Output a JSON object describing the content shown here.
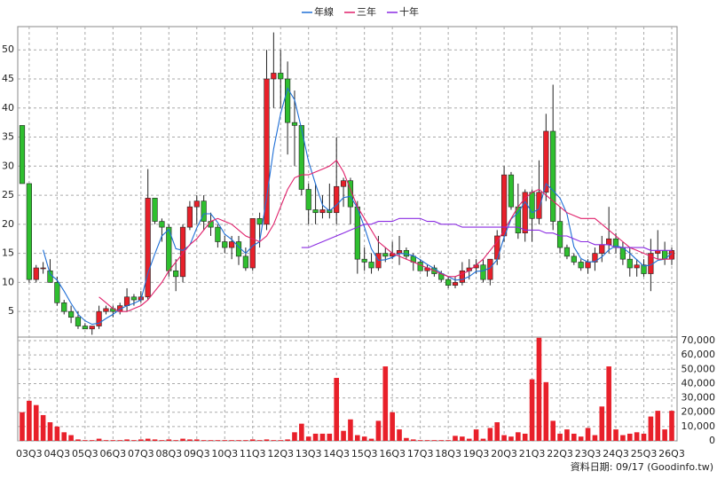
{
  "chart_data": [
    {
      "type": "candlestick",
      "up_color": "#e8202a",
      "down_color": "#2fbf2f",
      "ylim": [
        0.6,
        54
      ],
      "yticks": [
        5,
        10,
        15,
        20,
        25,
        30,
        35,
        40,
        45,
        50
      ],
      "grid": true,
      "legend": "top",
      "ohlc": [
        [
          37,
          37,
          27,
          27
        ],
        [
          27,
          27,
          10,
          10.5
        ],
        [
          10.5,
          13,
          10,
          12.5
        ],
        [
          12.5,
          13.5,
          11.5,
          12.5
        ],
        [
          12,
          14,
          10,
          10
        ],
        [
          10,
          11,
          6,
          6.5
        ],
        [
          6.5,
          7,
          4.5,
          5
        ],
        [
          5,
          6,
          3,
          4
        ],
        [
          4,
          5,
          2,
          2.5
        ],
        [
          2.5,
          3,
          2,
          2
        ],
        [
          2,
          2.5,
          1,
          2.5
        ],
        [
          2.5,
          6,
          2,
          5
        ],
        [
          5,
          6,
          4.5,
          5.5
        ],
        [
          5.5,
          6,
          4,
          5
        ],
        [
          5,
          6.5,
          4.5,
          6
        ],
        [
          6,
          9,
          5,
          7.5
        ],
        [
          7.5,
          8,
          6,
          7
        ],
        [
          7,
          8.5,
          6.5,
          7.5
        ],
        [
          7.5,
          29.5,
          7,
          24.5
        ],
        [
          24.5,
          24.5,
          20,
          20.5
        ],
        [
          20.5,
          21,
          17,
          19.5
        ],
        [
          19.5,
          20,
          11,
          12
        ],
        [
          12,
          14,
          8.5,
          11
        ],
        [
          11,
          20,
          10,
          19.5
        ],
        [
          19.5,
          24,
          19,
          23
        ],
        [
          23,
          25,
          20,
          24
        ],
        [
          24,
          25,
          19,
          20.5
        ],
        [
          20.5,
          22,
          18,
          19.5
        ],
        [
          19.5,
          20,
          16,
          17
        ],
        [
          17,
          18,
          15,
          16
        ],
        [
          16,
          18,
          14,
          17
        ],
        [
          17,
          18,
          13,
          14.5
        ],
        [
          14.5,
          16,
          12,
          12.5
        ],
        [
          12.5,
          21,
          12,
          21
        ],
        [
          21,
          22,
          16,
          20
        ],
        [
          20,
          50,
          19,
          45
        ],
        [
          45,
          53,
          40,
          46
        ],
        [
          46,
          50,
          40,
          45
        ],
        [
          45,
          48,
          32,
          37.5
        ],
        [
          37.5,
          43,
          30,
          37
        ],
        [
          37,
          37,
          25,
          26
        ],
        [
          26,
          27,
          20,
          22.5
        ],
        [
          22.5,
          27,
          20,
          22
        ],
        [
          22,
          25,
          21,
          22.5
        ],
        [
          22.5,
          27,
          21,
          22
        ],
        [
          22,
          35,
          20,
          26.5
        ],
        [
          26.5,
          28,
          23,
          27.5
        ],
        [
          27.5,
          28,
          20,
          23
        ],
        [
          23,
          24,
          11.5,
          14
        ],
        [
          14,
          16,
          12,
          13.5
        ],
        [
          13.5,
          15,
          11.5,
          12.5
        ],
        [
          12.5,
          18,
          12,
          15
        ],
        [
          15,
          16,
          13.5,
          14.5
        ],
        [
          14.5,
          17,
          14,
          15
        ],
        [
          15,
          18,
          13,
          15.5
        ],
        [
          15.5,
          16,
          14,
          14.5
        ],
        [
          14.5,
          15,
          12,
          13.5
        ],
        [
          13.5,
          14,
          12,
          12
        ],
        [
          12,
          13,
          11,
          12.5
        ],
        [
          12.5,
          13,
          11,
          11.5
        ],
        [
          11.5,
          12,
          10,
          10.5
        ],
        [
          10.5,
          11,
          9,
          9.5
        ],
        [
          9.5,
          11,
          9,
          10
        ],
        [
          10,
          13.5,
          9.5,
          12
        ],
        [
          12,
          14,
          10.5,
          12.5
        ],
        [
          12.5,
          14,
          11.5,
          13
        ],
        [
          13,
          14,
          10,
          10.5
        ],
        [
          10.5,
          14,
          9.5,
          14
        ],
        [
          14,
          19,
          13,
          18
        ],
        [
          18,
          30,
          17,
          28.5
        ],
        [
          28.5,
          29,
          22.5,
          23
        ],
        [
          23,
          27,
          17.5,
          18.5
        ],
        [
          18.5,
          26,
          17,
          25.5
        ],
        [
          25.5,
          26,
          17,
          21
        ],
        [
          21,
          31,
          20,
          25.5
        ],
        [
          25.5,
          39,
          24,
          36
        ],
        [
          36,
          44,
          19,
          20.5
        ],
        [
          20.5,
          23,
          15,
          16
        ],
        [
          16,
          16.5,
          14,
          14.5
        ],
        [
          14.5,
          15,
          13,
          13.5
        ],
        [
          13.5,
          14,
          12,
          12.5
        ],
        [
          12.5,
          14,
          11.5,
          13.5
        ],
        [
          13.5,
          16,
          12,
          15
        ],
        [
          15,
          18,
          13.5,
          16.5
        ],
        [
          16.5,
          23,
          15,
          17.5
        ],
        [
          17.5,
          18.5,
          15,
          16
        ],
        [
          16,
          17,
          13,
          14
        ],
        [
          14,
          16,
          11,
          12.5
        ],
        [
          12.5,
          14,
          11,
          13
        ],
        [
          13,
          14,
          11,
          11.5
        ],
        [
          11.5,
          17.5,
          8.5,
          15
        ],
        [
          15,
          19,
          14,
          15.5
        ],
        [
          15.5,
          17,
          13,
          14
        ],
        [
          14,
          16,
          13,
          15.5
        ]
      ],
      "series": [
        {
          "name": "年線",
          "color": "#1f6fd6",
          "values": [
            null,
            null,
            null,
            15.6,
            11.4,
            10.4,
            8.5,
            6.4,
            4.5,
            3.4,
            2.8,
            3,
            3.8,
            4.5,
            5.4,
            6,
            6.4,
            7,
            11.6,
            14.9,
            18,
            19.1,
            15.8,
            15.5,
            16.4,
            19.4,
            21.8,
            21.8,
            20.3,
            18.3,
            17.4,
            16.1,
            15,
            16.3,
            17,
            24.6,
            33,
            39,
            43.4,
            41.4,
            36.4,
            30.8,
            26.9,
            23.3,
            22.3,
            23.3,
            24.6,
            24.8,
            22.8,
            19.5,
            15.8,
            13.8,
            13.9,
            14.3,
            15,
            14.9,
            14.6,
            13.9,
            13.1,
            12.4,
            11.6,
            11,
            10.4,
            10.5,
            11,
            11.9,
            12,
            12.5,
            13.9,
            17.8,
            20.9,
            22,
            23.9,
            22,
            22.6,
            27,
            25.8,
            24.5,
            21.8,
            16.1,
            14.1,
            13.5,
            13.6,
            14.4,
            15.6,
            16.3,
            16,
            15,
            13.9,
            12.8,
            13,
            13.8,
            14,
            15
          ]
        },
        {
          "name": "三年",
          "color": "#e0206a",
          "values": [
            null,
            null,
            null,
            null,
            null,
            null,
            null,
            null,
            null,
            null,
            null,
            7.5,
            6.5,
            5.5,
            5,
            5,
            5.5,
            6,
            7,
            8.5,
            10,
            12,
            13.5,
            15,
            16.5,
            17.5,
            19,
            20.5,
            21,
            20.5,
            20,
            19,
            18,
            17.5,
            17,
            18,
            20,
            23,
            26,
            28,
            28.5,
            28.5,
            29,
            29.5,
            30,
            31,
            29,
            26,
            23,
            21,
            19,
            17,
            16,
            15,
            14.5,
            14,
            13.5,
            13,
            12.5,
            12,
            11.5,
            11,
            11,
            11.5,
            12,
            13,
            14,
            15.5,
            17,
            19,
            21,
            23,
            24.5,
            25.5,
            26,
            25,
            24,
            23,
            22,
            21.5,
            21,
            21,
            21,
            20,
            19,
            18,
            17,
            16,
            15.5,
            15,
            14.5,
            14,
            14,
            14
          ]
        },
        {
          "name": "十年",
          "color": "#8a2be2",
          "values": [
            null,
            null,
            null,
            null,
            null,
            null,
            null,
            null,
            null,
            null,
            null,
            null,
            null,
            null,
            null,
            null,
            null,
            null,
            null,
            null,
            null,
            null,
            null,
            null,
            null,
            null,
            null,
            null,
            null,
            null,
            null,
            null,
            null,
            null,
            null,
            null,
            null,
            null,
            null,
            null,
            16,
            16,
            16.5,
            17,
            17.5,
            18,
            18.5,
            19,
            19.5,
            20,
            20,
            20.5,
            20.5,
            20.5,
            21,
            21,
            21,
            21,
            20.5,
            20.5,
            20,
            20,
            20,
            19.5,
            19.5,
            19.5,
            19.5,
            19.5,
            19.5,
            19.5,
            19.5,
            19.5,
            19,
            19,
            19,
            18.5,
            18.5,
            18,
            18,
            17.5,
            17,
            17,
            16.5,
            16.5,
            16.5,
            16,
            16,
            16,
            16,
            16,
            15.5,
            15.5,
            15.5,
            15.5
          ]
        }
      ]
    },
    {
      "type": "bar",
      "color": "#e8202a",
      "ylim": [
        0,
        72500
      ],
      "yticks": [
        0,
        {
          "value": 10000,
          "label": "10,000"
        },
        {
          "value": 20000,
          "label": "20,000"
        },
        {
          "value": 30000,
          "label": "30,000"
        },
        {
          "value": 40000,
          "label": "40,000"
        },
        {
          "value": 50000,
          "label": "50,000"
        },
        {
          "value": 60000,
          "label": "60,000"
        },
        {
          "value": 70000,
          "label": "70,000"
        }
      ],
      "grid": true,
      "categories": [
        null,
        "03Q3",
        null,
        null,
        null,
        "04Q3",
        null,
        null,
        null,
        "05Q3",
        null,
        null,
        null,
        "06Q3",
        null,
        null,
        null,
        "07Q3",
        null,
        null,
        null,
        "08Q3",
        null,
        null,
        null,
        "09Q3",
        null,
        null,
        null,
        "10Q3",
        null,
        null,
        null,
        "11Q3",
        null,
        null,
        null,
        "12Q3",
        null,
        null,
        null,
        "13Q3",
        null,
        null,
        null,
        "14Q3",
        null,
        null,
        null,
        "15Q3",
        null,
        null,
        null,
        "16Q3",
        null,
        null,
        null,
        "17Q3",
        null,
        null,
        null,
        "18Q3",
        null,
        null,
        null,
        "19Q3",
        null,
        null,
        null,
        "20Q3",
        null,
        null,
        null,
        "21Q3",
        null,
        null,
        null,
        "22Q3",
        null,
        null,
        null,
        "23Q3",
        null,
        null,
        null,
        "24Q3",
        null,
        null,
        null,
        "25Q3",
        null,
        null,
        null,
        "26Q3"
      ],
      "values": [
        20000,
        28000,
        25000,
        18000,
        13000,
        10000,
        6000,
        4000,
        1000,
        500,
        500,
        1500,
        500,
        500,
        500,
        1000,
        500,
        1000,
        1500,
        1000,
        500,
        1000,
        500,
        1500,
        1000,
        1000,
        500,
        500,
        500,
        500,
        500,
        500,
        500,
        1000,
        500,
        1000,
        500,
        500,
        1000,
        6000,
        12000,
        3000,
        5000,
        5000,
        5000,
        44000,
        7000,
        15000,
        4000,
        3000,
        1500,
        14000,
        52000,
        20000,
        8000,
        2000,
        1000,
        500,
        500,
        500,
        500,
        500,
        3500,
        3000,
        1500,
        8000,
        1500,
        9000,
        13000,
        4000,
        3000,
        6000,
        5000,
        43000,
        72000,
        41000,
        14000,
        5000,
        8000,
        5000,
        3000,
        9000,
        4000,
        24000,
        52000,
        8000,
        4000,
        5000,
        6000,
        5000,
        17000,
        21000,
        8000,
        21000
      ]
    },
    {
      "type": "note",
      "text": "資料日期: 09/17 (Goodinfo.tw)"
    }
  ]
}
